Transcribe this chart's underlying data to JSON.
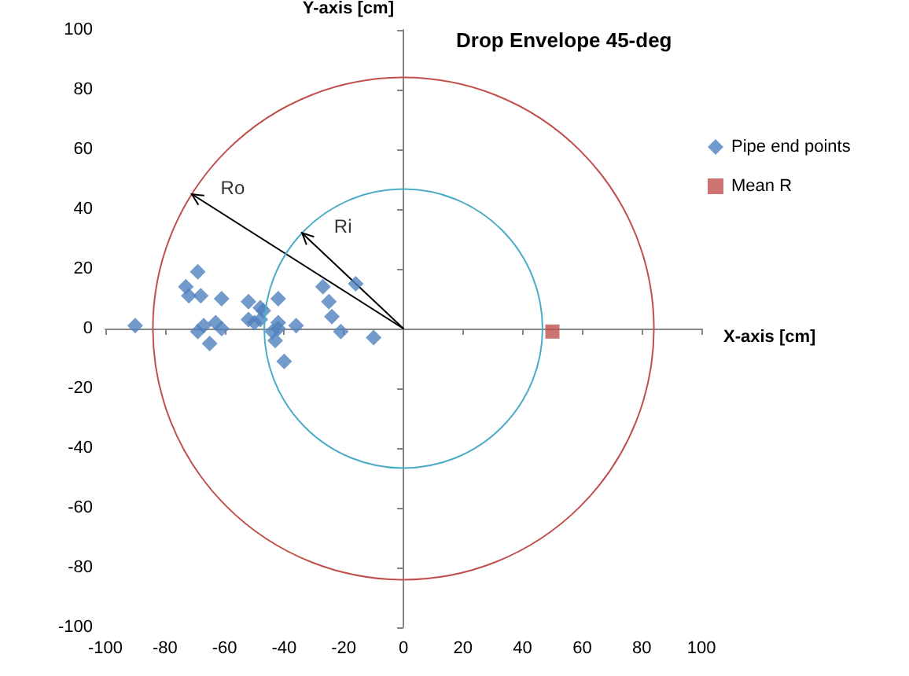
{
  "chart_data": {
    "type": "scatter",
    "title": "Drop Envelope 45-deg",
    "xlabel": "X-axis [cm]",
    "ylabel": "Y-axis [cm]",
    "xlim": [
      -100,
      100
    ],
    "ylim": [
      -100,
      100
    ],
    "xticks": [
      -100,
      -80,
      -60,
      -40,
      -20,
      0,
      20,
      40,
      60,
      80,
      100
    ],
    "yticks": [
      -100,
      -80,
      -60,
      -40,
      -20,
      0,
      20,
      40,
      60,
      80,
      100
    ],
    "legend": "right",
    "series": [
      {
        "name": "Pipe end points",
        "marker": "diamond",
        "color": "#4f81bd",
        "x": [
          -90,
          -69,
          -73,
          -72,
          -68,
          -61,
          -69,
          -67,
          -65,
          -63,
          -61,
          -52,
          -52,
          -50,
          -48,
          -47,
          -48,
          -42,
          -42,
          -44,
          -43,
          -42,
          -40,
          -36,
          -27,
          -25,
          -24,
          -21,
          -16,
          -10
        ],
        "values": [
          1,
          19,
          14,
          11,
          11,
          10,
          -1,
          1,
          -5,
          2,
          0,
          9,
          3,
          2,
          7,
          6,
          3,
          10,
          2,
          -1,
          -4,
          0,
          -11,
          1,
          14,
          9,
          4,
          -1,
          15,
          -3
        ]
      },
      {
        "name": "Mean R",
        "marker": "square",
        "color": "#c0504d",
        "x": [
          50
        ],
        "values": [
          -1
        ]
      },
      {
        "type": "line",
        "color": "#000000",
        "x": [
          0,
          -71
        ],
        "values": [
          0,
          45
        ]
      },
      {
        "type": "line",
        "color": "#000000",
        "x": [
          0,
          -34
        ],
        "values": [
          0,
          32
        ]
      }
    ],
    "annotations": [
      {
        "text": "Ro",
        "x": -71,
        "y": 45
      },
      {
        "text": "Ri",
        "x": -34,
        "y": 32
      }
    ]
  }
}
